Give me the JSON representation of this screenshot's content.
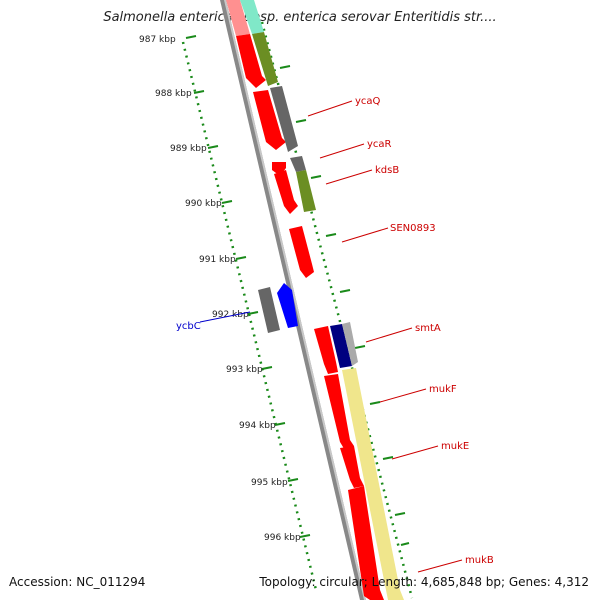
{
  "title": "Salmonella enterica subsp. enterica serovar Enteritidis str....",
  "footer": {
    "accession": "Accession: NC_011294",
    "topology": "Topology: circular; Length: 4,685,848 bp; Genes: 4,312"
  },
  "colors": {
    "ruler": "#1a8a1a",
    "backbone": "#8a8a8a",
    "cds_red": "#ff0000",
    "cds_olive": "#6b8e23",
    "cds_gray": "#666666",
    "cds_navy": "#000080",
    "cds_blue": "#0000ff",
    "cds_yellow": "#f0e68c",
    "cds_teal": "#40e0c0",
    "label_forward": "#cc0000",
    "label_reverse": "#0000cc"
  },
  "kbp_labels": [
    "987 kbp",
    "988 kbp",
    "989 kbp",
    "990 kbp",
    "991 kbp",
    "992 kbp",
    "993 kbp",
    "994 kbp",
    "995 kbp",
    "996 kbp"
  ],
  "gene_labels": [
    {
      "name": "ycaQ",
      "strand": "forward"
    },
    {
      "name": "ycaR",
      "strand": "forward"
    },
    {
      "name": "kdsB",
      "strand": "forward"
    },
    {
      "name": "SEN0893",
      "strand": "forward"
    },
    {
      "name": "ycbC",
      "strand": "reverse"
    },
    {
      "name": "smtA",
      "strand": "forward"
    },
    {
      "name": "mukF",
      "strand": "forward"
    },
    {
      "name": "mukE",
      "strand": "forward"
    },
    {
      "name": "mukB",
      "strand": "forward"
    }
  ]
}
